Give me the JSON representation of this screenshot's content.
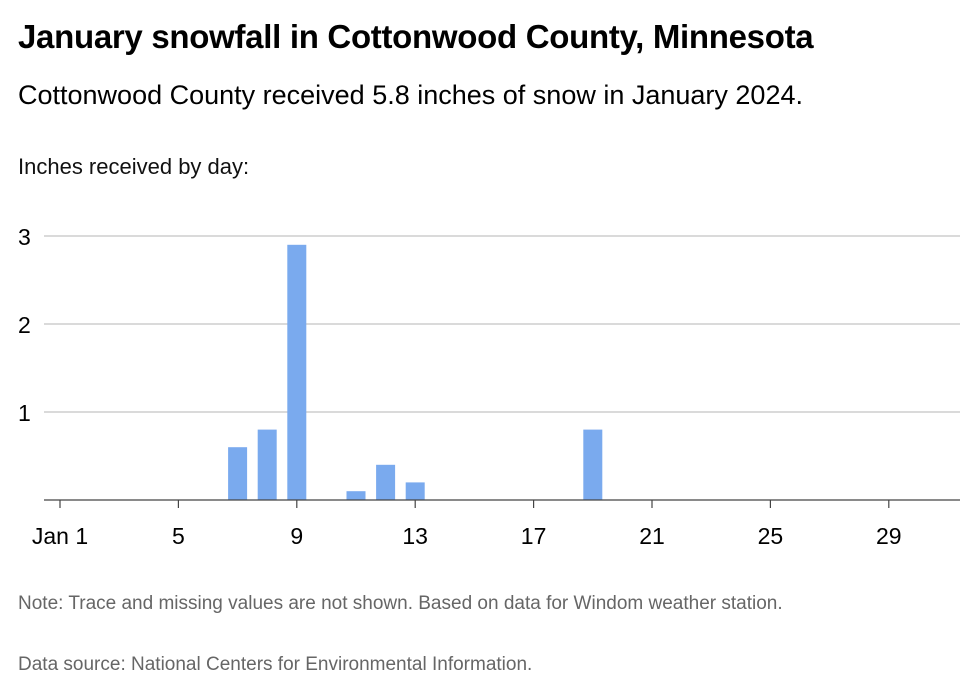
{
  "title": "January snowfall in Cottonwood County, Minnesota",
  "subtitle": "Cottonwood County received 5.8 inches of snow in January 2024.",
  "note": "Note: Trace and missing values are not shown. Based on data for Windom weather station.",
  "source": "Data source: National Centers for Environmental Information.",
  "chart_data": {
    "type": "bar",
    "ylabel": "Inches received by day:",
    "xlabel": "",
    "bar_color": "#7aaaee",
    "grid": true,
    "ylim": [
      0,
      3
    ],
    "y_ticks": [
      1,
      2,
      3
    ],
    "x_ticks": [
      {
        "day": 1,
        "label": "Jan 1"
      },
      {
        "day": 5,
        "label": "5"
      },
      {
        "day": 9,
        "label": "9"
      },
      {
        "day": 13,
        "label": "13"
      },
      {
        "day": 17,
        "label": "17"
      },
      {
        "day": 21,
        "label": "21"
      },
      {
        "day": 25,
        "label": "25"
      },
      {
        "day": 29,
        "label": "29"
      }
    ],
    "x": [
      7,
      8,
      9,
      11,
      12,
      13,
      19
    ],
    "values": [
      0.6,
      0.8,
      2.9,
      0.1,
      0.4,
      0.2,
      0.8
    ]
  }
}
